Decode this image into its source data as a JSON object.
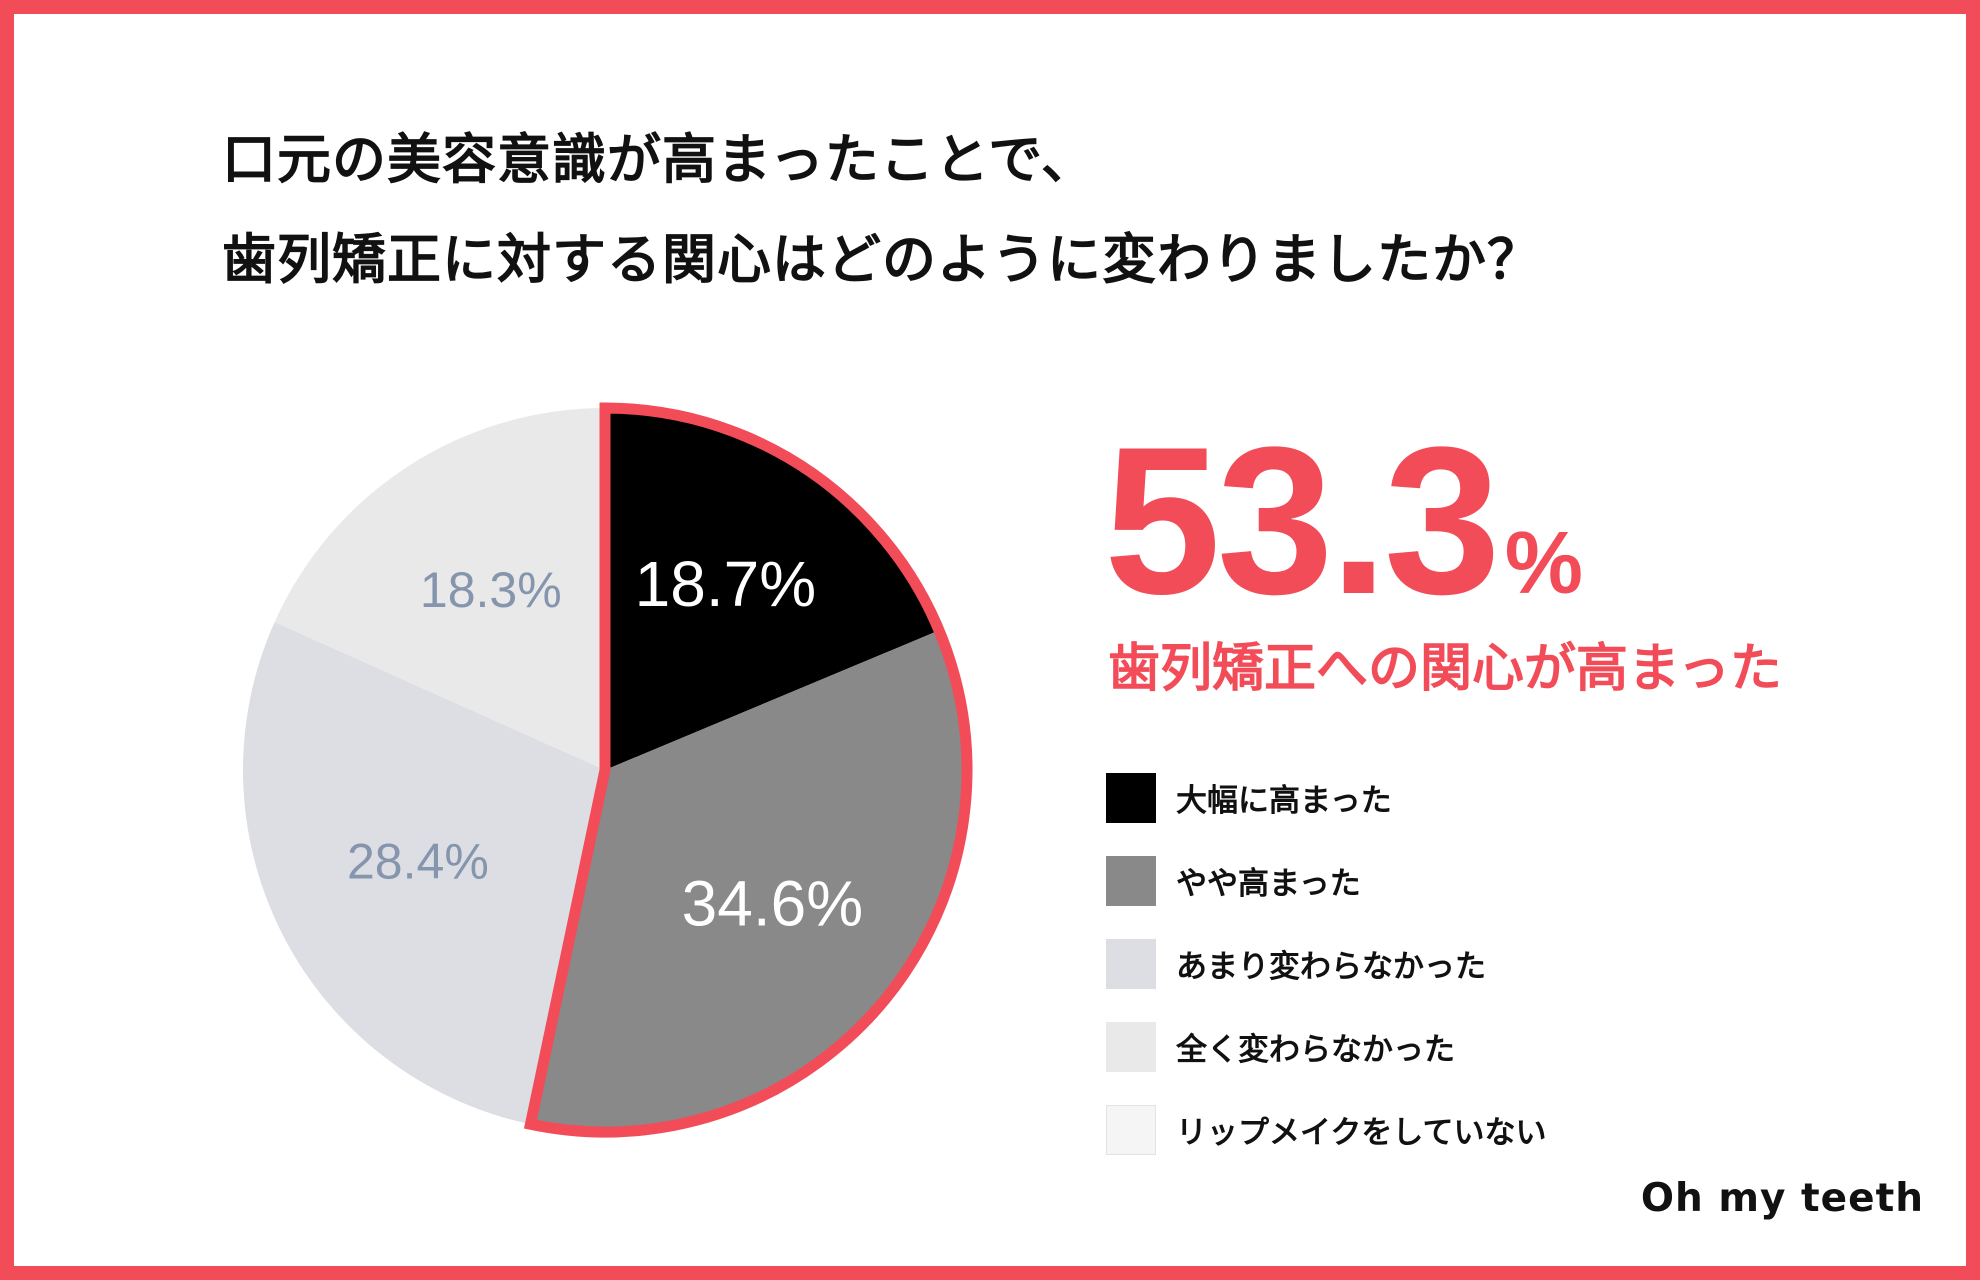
{
  "title": {
    "line1": "口元の美容意識が高まったことで、",
    "line2": "歯列矯正に対する関心はどのように変わりましたか？"
  },
  "highlight": {
    "value": "53.3",
    "unit": "%",
    "caption": "歯列矯正への関心が高まった",
    "color": "#f24c59"
  },
  "brand": "Oh my teeth",
  "chart_data": {
    "type": "pie",
    "start": "12 o'clock",
    "direction": "clockwise",
    "slices": [
      {
        "label": "大幅に高まった",
        "value": 18.7,
        "value_label": "18.7%",
        "color": "#000000",
        "text_color": "#ffffff",
        "highlighted": true
      },
      {
        "label": "やや高まった",
        "value": 34.6,
        "value_label": "34.6%",
        "color": "#898989",
        "text_color": "#ffffff",
        "highlighted": true
      },
      {
        "label": "あまり変わらなかった",
        "value": 28.4,
        "value_label": "28.4%",
        "color": "#dddee3",
        "text_color": "#8595ad",
        "highlighted": false
      },
      {
        "label": "全く変わらなかった",
        "value": 18.3,
        "value_label": "18.3%",
        "color": "#e9e9ea",
        "text_color": "#8595ad",
        "highlighted": false
      },
      {
        "label": "リップメイクをしていない",
        "value": 0,
        "value_label": "",
        "color": "#f4f5f4",
        "text_color": "#8595ad",
        "highlighted": false
      }
    ],
    "highlight_outline_color": "#f24c59"
  }
}
